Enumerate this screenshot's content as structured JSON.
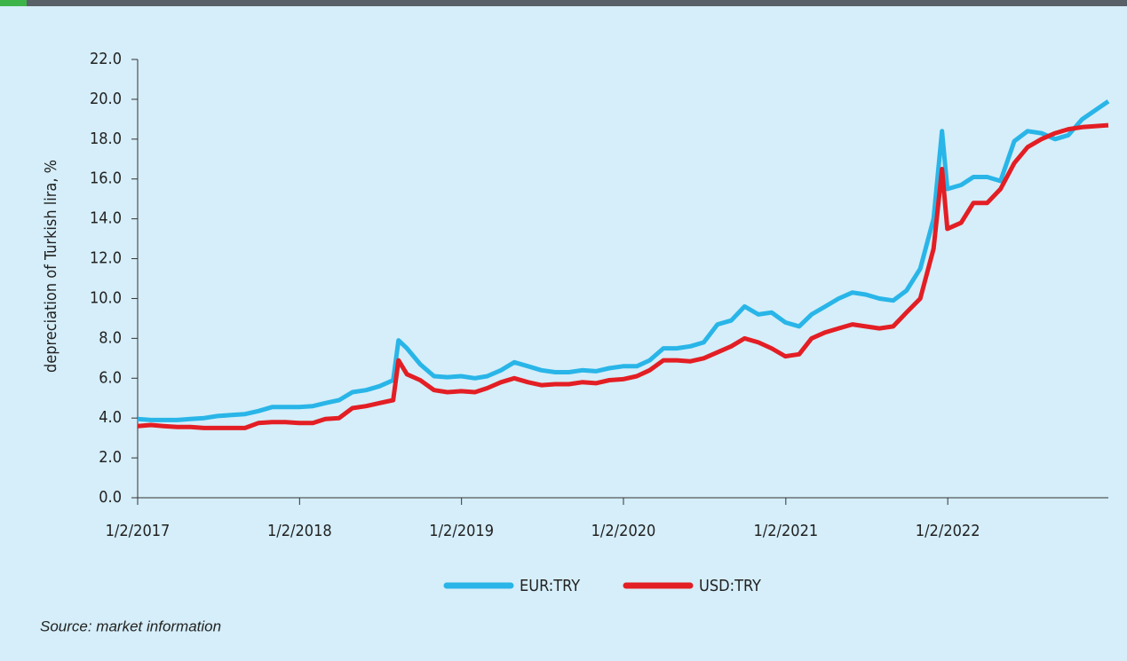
{
  "chart_data": {
    "type": "line",
    "y_label": "depreciation of Turkish lira, %",
    "source": "Source: market information",
    "x": [
      "2017-01-02",
      "2017-02-01",
      "2017-03-01",
      "2017-04-01",
      "2017-05-01",
      "2017-06-01",
      "2017-07-01",
      "2017-08-01",
      "2017-09-01",
      "2017-10-01",
      "2017-11-01",
      "2017-12-01",
      "2018-01-01",
      "2018-02-01",
      "2018-03-01",
      "2018-04-01",
      "2018-05-01",
      "2018-06-01",
      "2018-07-01",
      "2018-08-01",
      "2018-08-13",
      "2018-09-01",
      "2018-10-01",
      "2018-11-01",
      "2018-12-01",
      "2019-01-01",
      "2019-02-01",
      "2019-03-01",
      "2019-04-01",
      "2019-05-01",
      "2019-06-01",
      "2019-07-01",
      "2019-08-01",
      "2019-09-01",
      "2019-10-01",
      "2019-11-01",
      "2019-12-01",
      "2020-01-01",
      "2020-02-01",
      "2020-03-01",
      "2020-04-01",
      "2020-05-01",
      "2020-06-01",
      "2020-07-01",
      "2020-08-01",
      "2020-09-01",
      "2020-10-01",
      "2020-11-01",
      "2020-12-01",
      "2021-01-01",
      "2021-02-01",
      "2021-03-01",
      "2021-04-01",
      "2021-05-01",
      "2021-06-01",
      "2021-07-01",
      "2021-08-01",
      "2021-09-01",
      "2021-10-01",
      "2021-11-01",
      "2021-12-01",
      "2021-12-20",
      "2022-01-01",
      "2022-02-01",
      "2022-03-01",
      "2022-04-01",
      "2022-05-01",
      "2022-06-01",
      "2022-07-01",
      "2022-08-01",
      "2022-09-01",
      "2022-10-01",
      "2022-11-01",
      "2022-12-30"
    ],
    "series": [
      {
        "name": "EUR:TRY",
        "color": "#29b5e8",
        "values": [
          3.95,
          3.9,
          3.9,
          3.9,
          3.95,
          4.0,
          4.1,
          4.15,
          4.2,
          4.35,
          4.55,
          4.55,
          4.55,
          4.6,
          4.75,
          4.9,
          5.3,
          5.4,
          5.6,
          5.9,
          7.9,
          7.5,
          6.7,
          6.1,
          6.05,
          6.1,
          6.0,
          6.1,
          6.4,
          6.8,
          6.6,
          6.4,
          6.3,
          6.3,
          6.4,
          6.35,
          6.5,
          6.6,
          6.6,
          6.9,
          7.5,
          7.5,
          7.6,
          7.8,
          8.7,
          8.9,
          9.6,
          9.2,
          9.3,
          8.8,
          8.6,
          9.2,
          9.6,
          10.0,
          10.3,
          10.2,
          10.0,
          9.9,
          10.4,
          11.5,
          14.0,
          18.4,
          15.5,
          15.7,
          16.1,
          16.1,
          15.9,
          17.9,
          18.4,
          18.3,
          18.0,
          18.2,
          19.0,
          19.9
        ]
      },
      {
        "name": "USD:TRY",
        "color": "#e31e24",
        "values": [
          3.6,
          3.65,
          3.6,
          3.55,
          3.55,
          3.5,
          3.5,
          3.5,
          3.5,
          3.75,
          3.8,
          3.8,
          3.75,
          3.75,
          3.95,
          4.0,
          4.5,
          4.6,
          4.75,
          4.9,
          6.9,
          6.2,
          5.9,
          5.4,
          5.3,
          5.35,
          5.3,
          5.5,
          5.8,
          6.0,
          5.8,
          5.65,
          5.7,
          5.7,
          5.8,
          5.75,
          5.9,
          5.95,
          6.1,
          6.4,
          6.9,
          6.9,
          6.85,
          7.0,
          7.3,
          7.6,
          8.0,
          7.8,
          7.5,
          7.1,
          7.2,
          8.0,
          8.3,
          8.5,
          8.7,
          8.6,
          8.5,
          8.6,
          9.3,
          10.0,
          12.5,
          16.5,
          13.5,
          13.8,
          14.8,
          14.8,
          15.5,
          16.8,
          17.6,
          18.0,
          18.3,
          18.5,
          18.6,
          18.7
        ]
      }
    ],
    "xlim": [
      "2017-01-02",
      "2022-12-30"
    ],
    "xticks": [
      {
        "value": "2017-01-02",
        "label": "1/2/2017"
      },
      {
        "value": "2018-01-02",
        "label": "1/2/2018"
      },
      {
        "value": "2019-01-02",
        "label": "1/2/2019"
      },
      {
        "value": "2020-01-02",
        "label": "1/2/2020"
      },
      {
        "value": "2021-01-02",
        "label": "1/2/2021"
      },
      {
        "value": "2022-01-02",
        "label": "1/2/2022"
      }
    ],
    "ylim": [
      0,
      22
    ],
    "yticks": [
      {
        "value": 0,
        "label": "0.0"
      },
      {
        "value": 2,
        "label": "2.0"
      },
      {
        "value": 4,
        "label": "4.0"
      },
      {
        "value": 6,
        "label": "6.0"
      },
      {
        "value": 8,
        "label": "8.0"
      },
      {
        "value": 10,
        "label": "10.0"
      },
      {
        "value": 12,
        "label": "12.0"
      },
      {
        "value": 14,
        "label": "14.0"
      },
      {
        "value": 16,
        "label": "16.0"
      },
      {
        "value": 18,
        "label": "18.0"
      },
      {
        "value": 20,
        "label": "20.0"
      },
      {
        "value": 22,
        "label": "22.0"
      }
    ],
    "legend": "bottom"
  }
}
